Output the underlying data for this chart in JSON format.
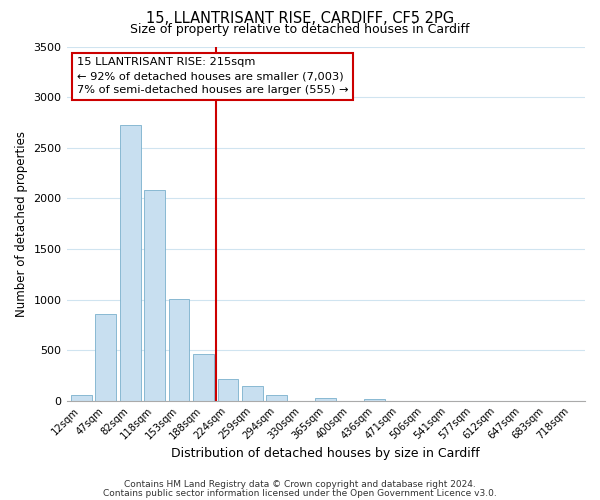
{
  "title": "15, LLANTRISANT RISE, CARDIFF, CF5 2PG",
  "subtitle": "Size of property relative to detached houses in Cardiff",
  "xlabel": "Distribution of detached houses by size in Cardiff",
  "ylabel": "Number of detached properties",
  "bar_labels": [
    "12sqm",
    "47sqm",
    "82sqm",
    "118sqm",
    "153sqm",
    "188sqm",
    "224sqm",
    "259sqm",
    "294sqm",
    "330sqm",
    "365sqm",
    "400sqm",
    "436sqm",
    "471sqm",
    "506sqm",
    "541sqm",
    "577sqm",
    "612sqm",
    "647sqm",
    "683sqm",
    "718sqm"
  ],
  "bar_values": [
    55,
    855,
    2720,
    2080,
    1010,
    460,
    215,
    145,
    55,
    0,
    30,
    0,
    20,
    0,
    0,
    0,
    0,
    0,
    0,
    0,
    0
  ],
  "bar_color": "#c8dff0",
  "bar_edge_color": "#7ab0cc",
  "vline_color": "#cc0000",
  "annotation_line1": "15 LLANTRISANT RISE: 215sqm",
  "annotation_line2": "← 92% of detached houses are smaller (7,003)",
  "annotation_line3": "7% of semi-detached houses are larger (555) →",
  "annotation_box_color": "#ffffff",
  "annotation_box_edge": "#cc0000",
  "ylim": [
    0,
    3500
  ],
  "yticks": [
    0,
    500,
    1000,
    1500,
    2000,
    2500,
    3000,
    3500
  ],
  "grid_color": "#d0e4f0",
  "footer1": "Contains HM Land Registry data © Crown copyright and database right 2024.",
  "footer2": "Contains public sector information licensed under the Open Government Licence v3.0.",
  "title_fontsize": 10.5,
  "subtitle_fontsize": 9,
  "ylabel_fontsize": 8.5,
  "xlabel_fontsize": 9
}
